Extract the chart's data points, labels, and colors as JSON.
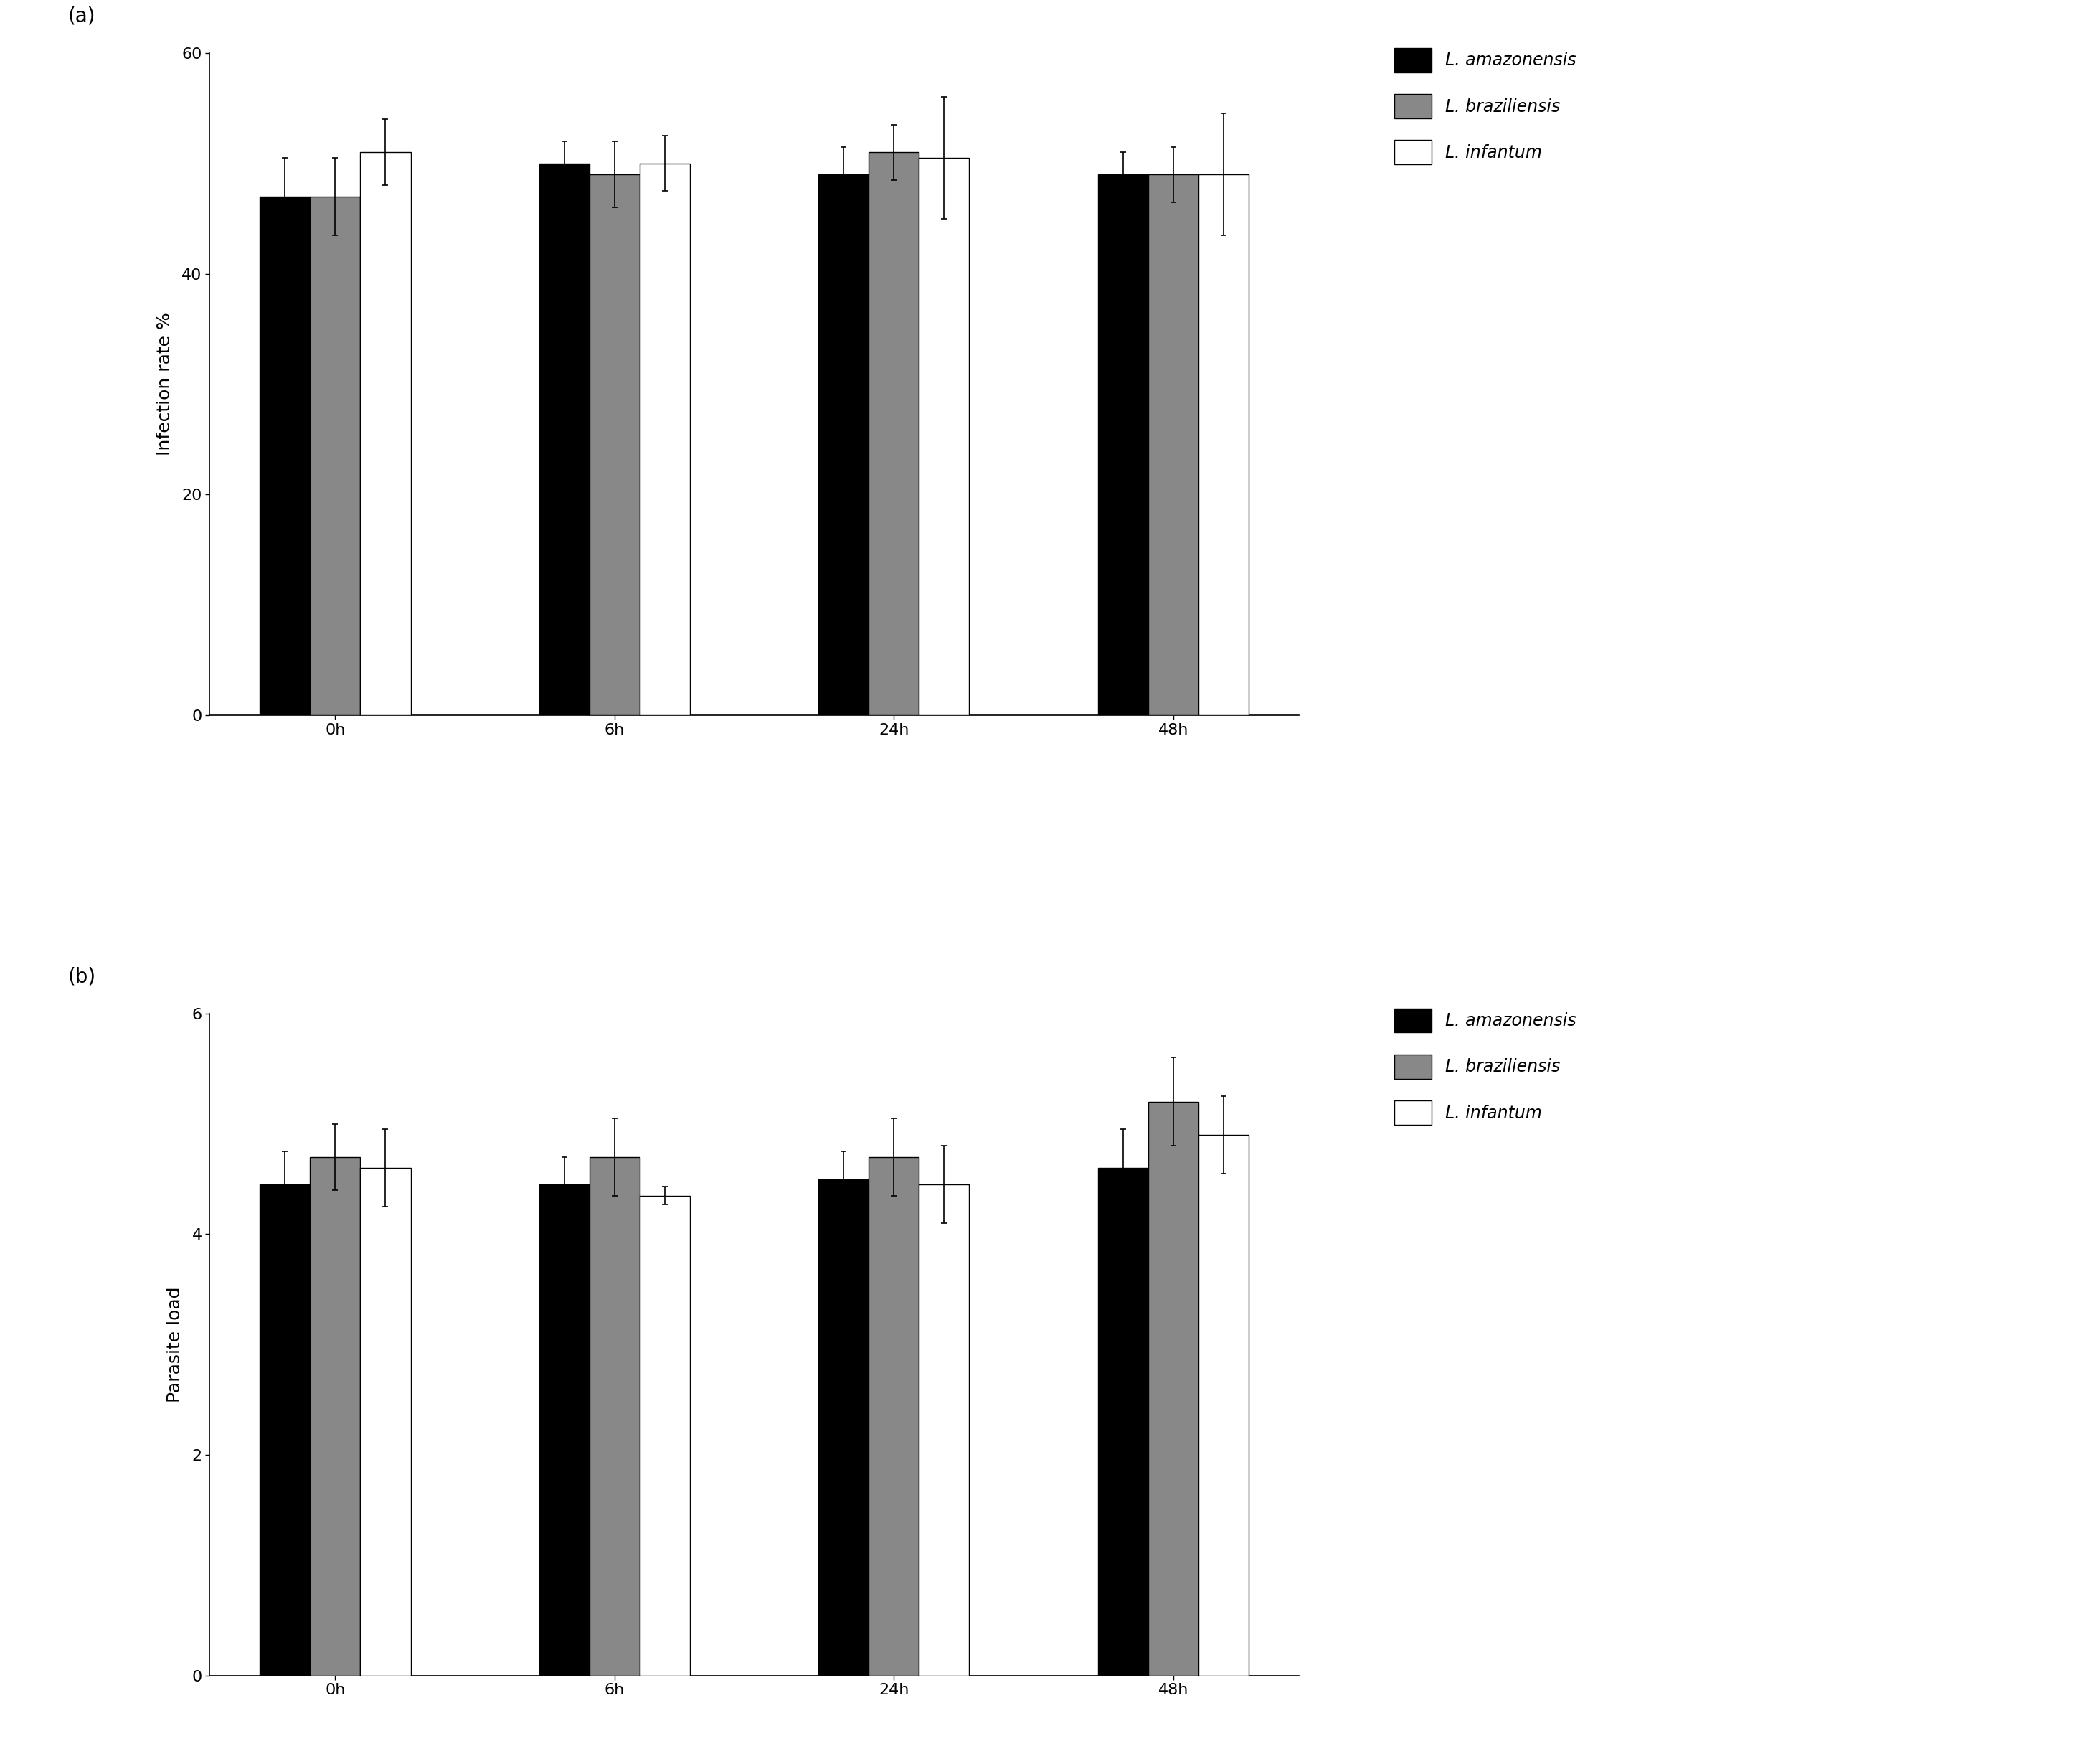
{
  "panel_a": {
    "ylabel": "Infection rate %",
    "ylim": [
      0,
      60
    ],
    "yticks": [
      0,
      20,
      40,
      60
    ],
    "categories": [
      "0h",
      "6h",
      "24h",
      "48h"
    ],
    "values": {
      "amazonensis": [
        47.0,
        50.0,
        49.0,
        49.0
      ],
      "braziliensis": [
        47.0,
        49.0,
        51.0,
        49.0
      ],
      "infantum": [
        51.0,
        50.0,
        50.5,
        49.0
      ]
    },
    "errors": {
      "amazonensis": [
        3.5,
        2.0,
        2.5,
        2.0
      ],
      "braziliensis": [
        3.5,
        3.0,
        2.5,
        2.5
      ],
      "infantum": [
        3.0,
        2.5,
        5.5,
        5.5
      ]
    }
  },
  "panel_b": {
    "ylabel": "Parasite load",
    "ylim": [
      0,
      6
    ],
    "yticks": [
      0,
      2,
      4,
      6
    ],
    "categories": [
      "0h",
      "6h",
      "24h",
      "48h"
    ],
    "values": {
      "amazonensis": [
        4.45,
        4.45,
        4.5,
        4.6
      ],
      "braziliensis": [
        4.7,
        4.7,
        4.7,
        5.2
      ],
      "infantum": [
        4.6,
        4.35,
        4.45,
        4.9
      ]
    },
    "errors": {
      "amazonensis": [
        0.3,
        0.25,
        0.25,
        0.35
      ],
      "braziliensis": [
        0.3,
        0.35,
        0.35,
        0.4
      ],
      "infantum": [
        0.35,
        0.08,
        0.35,
        0.35
      ]
    }
  },
  "colors": {
    "amazonensis": "#000000",
    "braziliensis": "#888888",
    "infantum": "#ffffff"
  },
  "legend_labels": [
    "L. amazonensis",
    "L. braziliensis",
    "L. infantum"
  ],
  "bar_width": 0.18,
  "background_color": "#ffffff",
  "edgecolor": "#000000",
  "label_fontsize": 18,
  "tick_fontsize": 16,
  "legend_fontsize": 17,
  "panel_label_fontsize": 20,
  "capsize": 3,
  "error_linewidth": 1.2,
  "spine_linewidth": 1.2
}
